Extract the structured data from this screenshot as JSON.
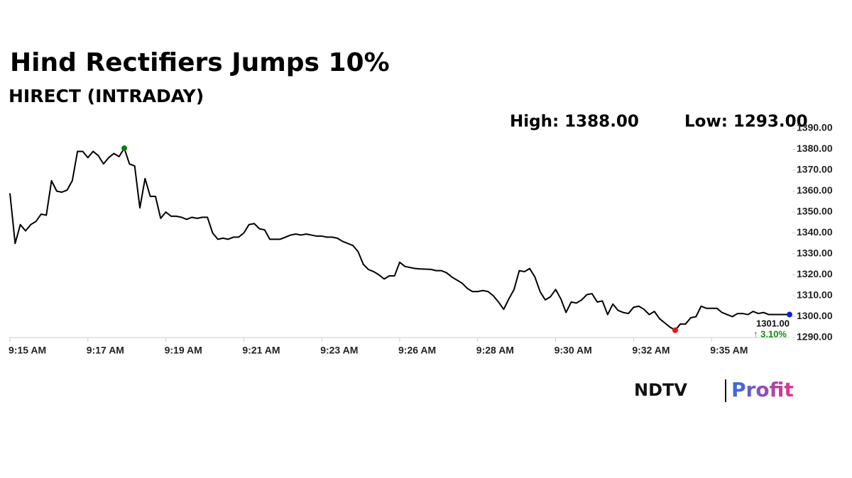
{
  "chart_data": {
    "type": "line",
    "title": "Hind Rectifiers Jumps 10%",
    "subtitle": "HIRECT (INTRADAY)",
    "annotations": {
      "high": "High: 1388.00",
      "low": "Low: 1293.00",
      "last_price": "1301.00",
      "change": "↑ 3.10%"
    },
    "logo": {
      "left": "NDTV",
      "right": "Profit"
    },
    "color": "#000000",
    "marker_colors": {
      "max": "#0a7d0a",
      "min": "#ee1111",
      "last": "#1122cc"
    },
    "categories": [
      "9:15 AM",
      null,
      null,
      null,
      null,
      null,
      null,
      null,
      null,
      null,
      null,
      null,
      null,
      null,
      null,
      "9:17 AM",
      null,
      null,
      null,
      null,
      null,
      null,
      null,
      null,
      null,
      null,
      null,
      null,
      null,
      null,
      "9:19 AM",
      null,
      null,
      null,
      null,
      null,
      null,
      null,
      null,
      null,
      null,
      null,
      null,
      null,
      null,
      "9:21 AM",
      null,
      null,
      null,
      null,
      null,
      null,
      null,
      null,
      null,
      null,
      null,
      null,
      null,
      null,
      "9:23 AM",
      null,
      null,
      null,
      null,
      null,
      null,
      null,
      null,
      null,
      null,
      null,
      null,
      null,
      null,
      "9:26 AM",
      null,
      null,
      null,
      null,
      null,
      null,
      null,
      null,
      null,
      null,
      null,
      null,
      null,
      null,
      "9:28 AM",
      null,
      null,
      null,
      null,
      null,
      null,
      null,
      null,
      null,
      null,
      null,
      null,
      null,
      null,
      "9:30 AM",
      null,
      null,
      null,
      null,
      null,
      null,
      null,
      null,
      null,
      null,
      null,
      null,
      null,
      null,
      "9:32 AM",
      null,
      null,
      null,
      null,
      null,
      null,
      null,
      null,
      null,
      null,
      null,
      null,
      null,
      null,
      "9:35 AM",
      null,
      null,
      null,
      null,
      null,
      null,
      null,
      null,
      null,
      null,
      null,
      null,
      null,
      null,
      null
    ],
    "values": [
      1359,
      1335,
      1344,
      1341,
      1344,
      1345.5,
      1349,
      1348.5,
      1365,
      1360,
      1359.5,
      1360.5,
      1365,
      1379,
      1379,
      1376,
      1379,
      1377,
      1373,
      1376,
      1378,
      1376.5,
      1380.5,
      1373,
      1372,
      1352,
      1366,
      1357.5,
      1357.5,
      1347,
      1350,
      1348,
      1348,
      1347.5,
      1346.5,
      1347.5,
      1347,
      1347.5,
      1347.5,
      1340,
      1337,
      1337.5,
      1337,
      1338,
      1338,
      1340,
      1344,
      1344.5,
      1342,
      1341.5,
      1337,
      1337,
      1337,
      1338,
      1339,
      1339.5,
      1339,
      1339.5,
      1339,
      1338.5,
      1338.5,
      1338,
      1338,
      1337.5,
      1336,
      1335,
      1334,
      1331,
      1325,
      1322.5,
      1321.5,
      1320,
      1318,
      1319.5,
      1319.5,
      1326,
      1324,
      1323.5,
      1323,
      1322.8,
      1322.7,
      1322.6,
      1322,
      1322,
      1321,
      1319,
      1317.5,
      1316,
      1313.5,
      1312,
      1312,
      1312.5,
      1312,
      1310,
      1307,
      1303.5,
      1308.5,
      1313,
      1322,
      1321.5,
      1323,
      1319,
      1312,
      1308,
      1309.5,
      1313,
      1308.5,
      1302,
      1307,
      1306.5,
      1308,
      1310.5,
      1311,
      1307,
      1307.5,
      1301,
      1306,
      1303,
      1302,
      1301.5,
      1304.5,
      1305,
      1303.5,
      1301,
      1302.5,
      1299,
      1297,
      1295,
      1293.5,
      1296.5,
      1296.5,
      1299.5,
      1300,
      1305,
      1304,
      1304,
      1304,
      1302,
      1301,
      1300,
      1301.5,
      1301.5,
      1301,
      1302.5,
      1301.5,
      1302,
      1301,
      1301,
      1301,
      1301,
      1301
    ],
    "ylim": [
      1290,
      1390
    ],
    "yticks": [
      {
        "value": 1290,
        "label": "1290.00"
      },
      {
        "value": 1300,
        "label": "1300.00"
      },
      {
        "value": 1310,
        "label": "1310.00"
      },
      {
        "value": 1320,
        "label": "1320.00"
      },
      {
        "value": 1330,
        "label": "1330.00"
      },
      {
        "value": 1340,
        "label": "1340.00"
      },
      {
        "value": 1350,
        "label": "1350.00"
      },
      {
        "value": 1360,
        "label": "1360.00"
      },
      {
        "value": 1370,
        "label": "1370.00"
      },
      {
        "value": 1380,
        "label": "1380.00"
      },
      {
        "value": 1390,
        "label": "1390.00"
      }
    ],
    "grid": false
  }
}
